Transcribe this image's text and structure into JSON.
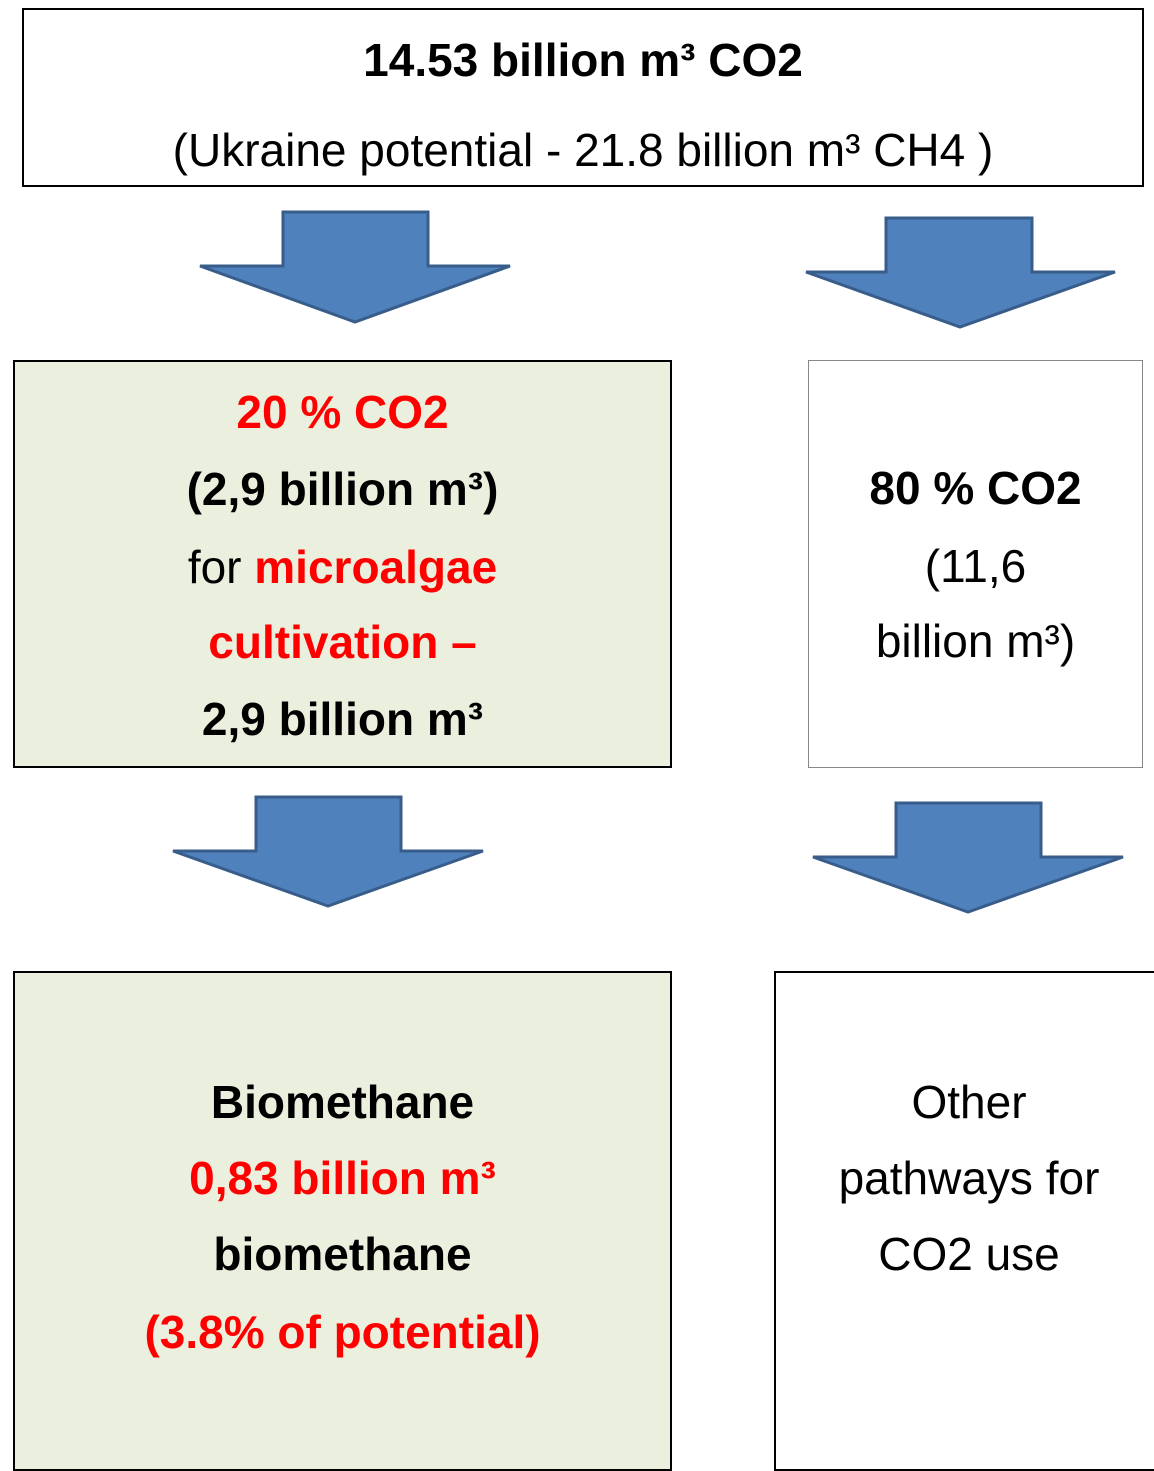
{
  "top": {
    "line1": "14.53 billion m³ CO2",
    "line2": "(Ukraine potential - 21.8 billion m³ CH4  )"
  },
  "left_box": {
    "line1": "20 % CO2",
    "line2": "(2,9 billion m³)",
    "line3a": "for",
    "line3b": "microalgae",
    "line4": "cultivation –",
    "line5": "2,9 billion m³"
  },
  "right_box": {
    "line1": "80 % CO2",
    "line2": "(11,6",
    "line3": "billion m³)"
  },
  "left_result": {
    "line1": "Biomethane",
    "line2": "0,83 billion m³",
    "line3": "biomethane",
    "line4": "(3.8%  of potential)"
  },
  "right_result": {
    "line1": "Other",
    "line2": "pathways for",
    "line3": "CO2 use"
  }
}
